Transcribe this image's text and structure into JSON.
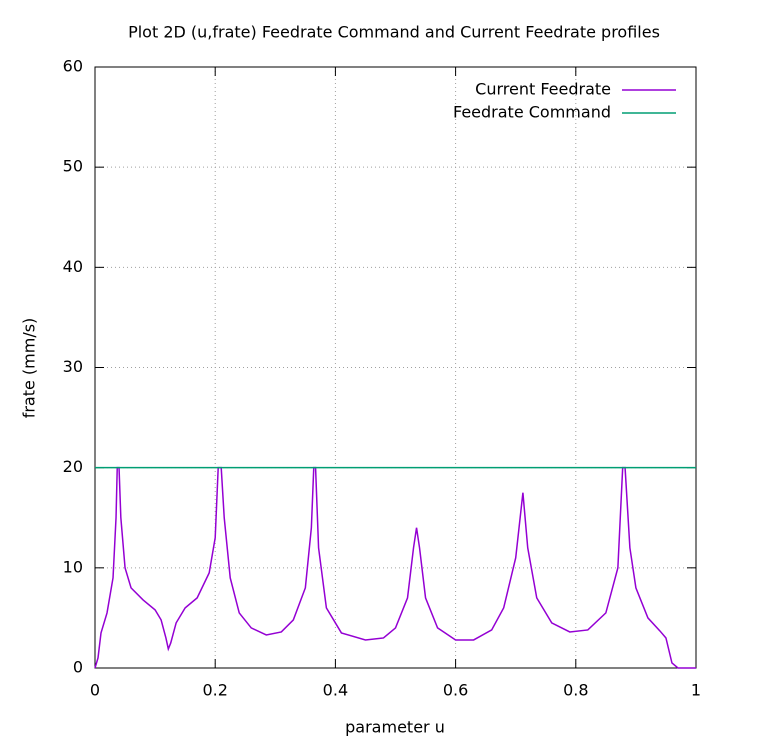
{
  "chart_data": {
    "type": "line",
    "title": "Plot 2D (u,frate) Feedrate Command and Current Feedrate profiles",
    "x_label": "parameter u",
    "y_label": "frate (mm/s)",
    "xlim": [
      0,
      1
    ],
    "ylim": [
      0,
      60
    ],
    "xticks": [
      0,
      0.2,
      0.4,
      0.6,
      0.8,
      1
    ],
    "yticks": [
      0,
      10,
      20,
      30,
      40,
      50,
      60
    ],
    "grid": true,
    "legend": "top-right",
    "series": [
      {
        "name": "Current Feedrate",
        "color": "#9400d3",
        "x": [
          0,
          0.005,
          0.01,
          0.02,
          0.03,
          0.035,
          0.037,
          0.04,
          0.043,
          0.05,
          0.06,
          0.08,
          0.1,
          0.11,
          0.118,
          0.122,
          0.126,
          0.135,
          0.15,
          0.17,
          0.19,
          0.2,
          0.205,
          0.21,
          0.215,
          0.225,
          0.24,
          0.26,
          0.285,
          0.31,
          0.33,
          0.35,
          0.36,
          0.364,
          0.367,
          0.372,
          0.385,
          0.41,
          0.45,
          0.48,
          0.5,
          0.52,
          0.53,
          0.535,
          0.54,
          0.55,
          0.57,
          0.6,
          0.63,
          0.66,
          0.68,
          0.7,
          0.712,
          0.72,
          0.735,
          0.76,
          0.79,
          0.82,
          0.85,
          0.87,
          0.878,
          0.882,
          0.89,
          0.9,
          0.92,
          0.94,
          0.95,
          0.96,
          0.97,
          1
        ],
        "values": [
          0,
          1,
          3.5,
          5.5,
          9,
          15,
          20,
          20,
          15,
          10,
          8,
          6.8,
          5.8,
          4.8,
          3,
          1.9,
          2.5,
          4.5,
          6,
          7,
          9.5,
          13,
          20,
          20,
          15,
          9,
          5.5,
          4,
          3.3,
          3.6,
          4.8,
          8,
          14,
          20,
          20,
          12,
          6,
          3.5,
          2.8,
          3,
          4,
          7,
          12,
          14,
          12,
          7,
          4,
          2.8,
          2.8,
          3.8,
          6,
          11,
          17.5,
          12,
          7,
          4.5,
          3.6,
          3.8,
          5.5,
          10,
          20,
          20,
          12,
          8,
          5,
          3.7,
          3,
          0.5,
          0,
          0
        ]
      },
      {
        "name": "Feedrate Command",
        "color": "#009e73",
        "x": [
          0,
          1
        ],
        "values": [
          20,
          20
        ]
      }
    ]
  }
}
